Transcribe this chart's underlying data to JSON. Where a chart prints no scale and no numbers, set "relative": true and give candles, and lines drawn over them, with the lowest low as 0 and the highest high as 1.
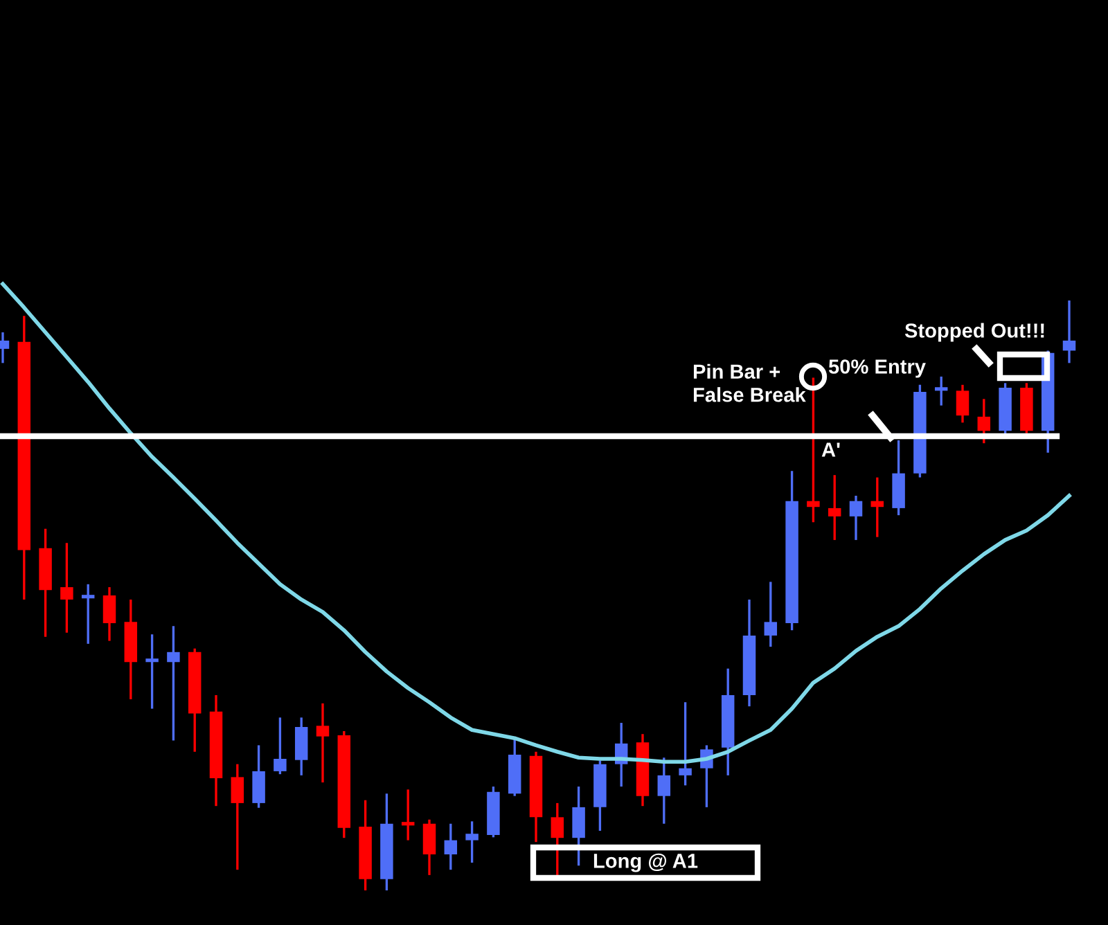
{
  "chart_data": {
    "type": "candlestick",
    "relative": true,
    "categories": [
      null,
      null,
      null,
      null,
      null,
      null,
      null,
      null,
      null,
      null,
      null,
      null,
      null,
      null,
      null,
      null,
      null,
      null,
      null,
      null,
      null,
      null,
      null,
      null,
      null,
      null,
      null,
      null,
      null,
      null,
      null,
      null,
      null,
      null,
      null,
      null,
      null,
      null,
      null,
      null,
      null,
      null,
      null,
      null,
      null,
      null,
      null,
      null,
      null,
      null,
      null
    ],
    "ohlc": [
      [
        0.918,
        0.946,
        0.894,
        0.932
      ],
      [
        0.93,
        0.974,
        0.493,
        0.577
      ],
      [
        0.58,
        0.613,
        0.43,
        0.509
      ],
      [
        0.514,
        0.589,
        0.437,
        0.493
      ],
      [
        0.495,
        0.519,
        0.418,
        0.498
      ],
      [
        0.5,
        0.514,
        0.423,
        0.453
      ],
      [
        0.455,
        0.493,
        0.324,
        0.387
      ],
      [
        0.387,
        0.434,
        0.308,
        0.39
      ],
      [
        0.387,
        0.448,
        0.254,
        0.404
      ],
      [
        0.404,
        0.41,
        0.235,
        0.3
      ],
      [
        0.303,
        0.331,
        0.143,
        0.19
      ],
      [
        0.192,
        0.214,
        0.035,
        0.148
      ],
      [
        0.148,
        0.246,
        0.14,
        0.202
      ],
      [
        0.202,
        0.293,
        0.197,
        0.223
      ],
      [
        0.221,
        0.293,
        0.195,
        0.277
      ],
      [
        0.279,
        0.317,
        0.183,
        0.261
      ],
      [
        0.263,
        0.27,
        0.089,
        0.106
      ],
      [
        0.108,
        0.153,
        0,
        0.019
      ],
      [
        0.019,
        0.164,
        0,
        0.113
      ],
      [
        0.113,
        0.171,
        0.085,
        0.11
      ],
      [
        0.113,
        0.12,
        0.026,
        0.061
      ],
      [
        0.061,
        0.113,
        0.035,
        0.085
      ],
      [
        0.085,
        0.117,
        0.047,
        0.096
      ],
      [
        0.094,
        0.176,
        0.09,
        0.167
      ],
      [
        0.164,
        0.258,
        0.16,
        0.23
      ],
      [
        0.228,
        0.235,
        0.082,
        0.124
      ],
      [
        0.124,
        0.148,
        0.023,
        0.089
      ],
      [
        0.089,
        0.176,
        0.042,
        0.141
      ],
      [
        0.141,
        0.22,
        0.101,
        0.214
      ],
      [
        0.214,
        0.284,
        0.176,
        0.249
      ],
      [
        0.251,
        0.265,
        0.143,
        0.16
      ],
      [
        0.16,
        0.225,
        0.113,
        0.195
      ],
      [
        0.195,
        0.319,
        0.178,
        0.207
      ],
      [
        0.207,
        0.246,
        0.141,
        0.239
      ],
      [
        0.242,
        0.376,
        0.195,
        0.331
      ],
      [
        0.331,
        0.493,
        0.312,
        0.432
      ],
      [
        0.432,
        0.523,
        0.413,
        0.455
      ],
      [
        0.453,
        0.711,
        0.441,
        0.66
      ],
      [
        0.66,
        0.869,
        0.624,
        0.65
      ],
      [
        0.648,
        0.704,
        0.594,
        0.634
      ],
      [
        0.634,
        0.669,
        0.594,
        0.66
      ],
      [
        0.66,
        0.7,
        0.599,
        0.65
      ],
      [
        0.648,
        0.763,
        0.636,
        0.707
      ],
      [
        0.707,
        0.857,
        0.7,
        0.845
      ],
      [
        0.847,
        0.871,
        0.822,
        0.85
      ],
      [
        0.847,
        0.857,
        0.793,
        0.805
      ],
      [
        0.803,
        0.833,
        0.758,
        0.779
      ],
      [
        0.779,
        0.86,
        0.77,
        0.852
      ],
      [
        0.852,
        0.86,
        0.775,
        0.779
      ],
      [
        0.779,
        0.915,
        0.742,
        0.911
      ],
      [
        0.915,
        1.0,
        0.894,
        0.932
      ]
    ],
    "colors": [
      "#4f6ef7",
      "#ff0000",
      "#ff0000",
      "#ff0000",
      "#4f6ef7",
      "#ff0000",
      "#ff0000",
      "#4f6ef7",
      "#4f6ef7",
      "#ff0000",
      "#ff0000",
      "#ff0000",
      "#4f6ef7",
      "#4f6ef7",
      "#4f6ef7",
      "#ff0000",
      "#ff0000",
      "#ff0000",
      "#4f6ef7",
      "#ff0000",
      "#ff0000",
      "#4f6ef7",
      "#4f6ef7",
      "#4f6ef7",
      "#4f6ef7",
      "#ff0000",
      "#ff0000",
      "#4f6ef7",
      "#4f6ef7",
      "#4f6ef7",
      "#ff0000",
      "#4f6ef7",
      "#4f6ef7",
      "#4f6ef7",
      "#4f6ef7",
      "#4f6ef7",
      "#4f6ef7",
      "#4f6ef7",
      "#ff0000",
      "#ff0000",
      "#4f6ef7",
      "#ff0000",
      "#4f6ef7",
      "#4f6ef7",
      "#4f6ef7",
      "#ff0000",
      "#ff0000",
      "#4f6ef7",
      "#ff0000",
      "#4f6ef7",
      "#4f6ef7"
    ],
    "series": [
      {
        "type": "line",
        "color": "#7fd8e8",
        "values": [
          1.028,
          0.988,
          0.946,
          0.904,
          0.862,
          0.817,
          0.775,
          0.735,
          0.7,
          0.664,
          0.627,
          0.589,
          0.554,
          0.519,
          0.493,
          0.472,
          0.441,
          0.404,
          0.371,
          0.343,
          0.319,
          0.293,
          0.272,
          0.265,
          0.258,
          0.246,
          0.235,
          0.225,
          0.223,
          0.223,
          0.221,
          0.218,
          0.218,
          0.223,
          0.235,
          0.254,
          0.272,
          0.308,
          0.352,
          0.376,
          0.406,
          0.43,
          0.448,
          0.477,
          0.512,
          0.542,
          0.57,
          0.594,
          0.61,
          0.636,
          0.669
        ]
      }
    ],
    "ref_lines": [
      {
        "axis": "y",
        "value": 0.77,
        "color": "#ffffff",
        "line_style": "solid"
      }
    ],
    "annotations": [
      "Pin Bar +\nFalse Break",
      "50% Entry",
      "Stopped Out!!!",
      "A'",
      "Long @ A1"
    ]
  }
}
